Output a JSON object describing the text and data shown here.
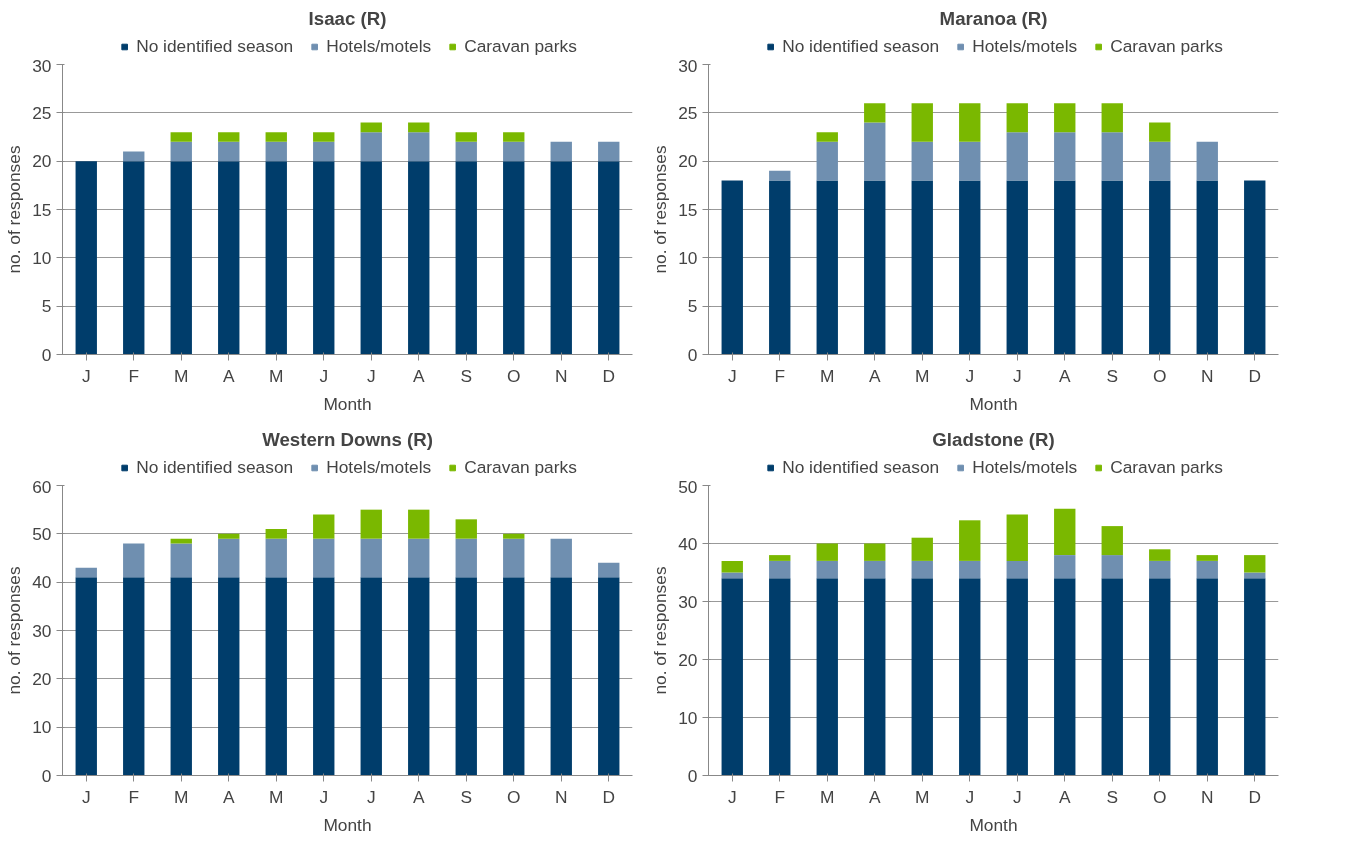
{
  "chart_data": [
    {
      "type": "bar",
      "title": "Isaac (R)",
      "xlabel": "Month",
      "ylabel": "no. of responses",
      "categories": [
        "J",
        "F",
        "M",
        "A",
        "M",
        "J",
        "J",
        "A",
        "S",
        "O",
        "N",
        "D"
      ],
      "stacked": true,
      "ylim": [
        0,
        30
      ],
      "yticks": [
        0,
        5,
        10,
        15,
        20,
        25,
        30
      ],
      "grid": "y",
      "legend": "top",
      "series": [
        {
          "name": "No identified season",
          "color": "#003d6b",
          "values": [
            20,
            20,
            20,
            20,
            20,
            20,
            20,
            20,
            20,
            20,
            20,
            20
          ]
        },
        {
          "name": "Hotels/motels",
          "color": "#6f8fb0",
          "values": [
            0,
            1,
            2,
            2,
            2,
            2,
            3,
            3,
            2,
            2,
            2,
            2
          ]
        },
        {
          "name": "Caravan parks",
          "color": "#7ab800",
          "values": [
            0,
            0,
            1,
            1,
            1,
            1,
            1,
            1,
            1,
            1,
            0,
            0
          ]
        }
      ]
    },
    {
      "type": "bar",
      "title": "Maranoa (R)",
      "xlabel": "Month",
      "ylabel": "no. of responses",
      "categories": [
        "J",
        "F",
        "M",
        "A",
        "M",
        "J",
        "J",
        "A",
        "S",
        "O",
        "N",
        "D"
      ],
      "stacked": true,
      "ylim": [
        0,
        30
      ],
      "yticks": [
        0,
        5,
        10,
        15,
        20,
        25,
        30
      ],
      "grid": "y",
      "legend": "top",
      "series": [
        {
          "name": "No identified season",
          "color": "#003d6b",
          "values": [
            18,
            18,
            18,
            18,
            18,
            18,
            18,
            18,
            18,
            18,
            18,
            18
          ]
        },
        {
          "name": "Hotels/motels",
          "color": "#6f8fb0",
          "values": [
            0,
            1,
            4,
            6,
            4,
            4,
            5,
            5,
            5,
            4,
            4,
            0
          ]
        },
        {
          "name": "Caravan parks",
          "color": "#7ab800",
          "values": [
            0,
            0,
            1,
            2,
            4,
            4,
            3,
            3,
            3,
            2,
            0,
            0
          ]
        }
      ]
    },
    {
      "type": "bar",
      "title": "Western Downs (R)",
      "xlabel": "Month",
      "ylabel": "no. of responses",
      "categories": [
        "J",
        "F",
        "M",
        "A",
        "M",
        "J",
        "J",
        "A",
        "S",
        "O",
        "N",
        "D"
      ],
      "stacked": true,
      "ylim": [
        0,
        60
      ],
      "yticks": [
        0,
        10,
        20,
        30,
        40,
        50,
        60
      ],
      "grid": "y",
      "legend": "top",
      "series": [
        {
          "name": "No identified season",
          "color": "#003d6b",
          "values": [
            41,
            41,
            41,
            41,
            41,
            41,
            41,
            41,
            41,
            41,
            41,
            41
          ]
        },
        {
          "name": "Hotels/motels",
          "color": "#6f8fb0",
          "values": [
            2,
            7,
            7,
            8,
            8,
            8,
            8,
            8,
            8,
            8,
            8,
            3
          ]
        },
        {
          "name": "Caravan parks",
          "color": "#7ab800",
          "values": [
            0,
            0,
            1,
            1,
            2,
            5,
            6,
            6,
            4,
            1,
            0,
            0
          ]
        }
      ]
    },
    {
      "type": "bar",
      "title": "Gladstone (R)",
      "xlabel": "Month",
      "ylabel": "no. of responses",
      "categories": [
        "J",
        "F",
        "M",
        "A",
        "M",
        "J",
        "J",
        "A",
        "S",
        "O",
        "N",
        "D"
      ],
      "stacked": true,
      "ylim": [
        0,
        50
      ],
      "yticks": [
        0,
        10,
        20,
        30,
        40,
        50
      ],
      "grid": "y",
      "legend": "top",
      "series": [
        {
          "name": "No identified season",
          "color": "#003d6b",
          "values": [
            34,
            34,
            34,
            34,
            34,
            34,
            34,
            34,
            34,
            34,
            34,
            34
          ]
        },
        {
          "name": "Hotels/motels",
          "color": "#6f8fb0",
          "values": [
            1,
            3,
            3,
            3,
            3,
            3,
            3,
            4,
            4,
            3,
            3,
            1
          ]
        },
        {
          "name": "Caravan parks",
          "color": "#7ab800",
          "values": [
            2,
            1,
            3,
            3,
            4,
            7,
            8,
            8,
            5,
            2,
            1,
            3
          ]
        }
      ]
    }
  ]
}
